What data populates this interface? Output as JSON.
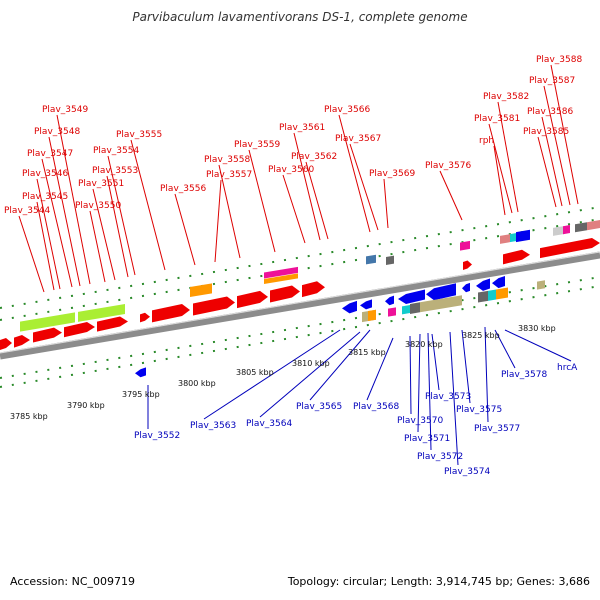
{
  "title": "Parvibaculum lavamentivorans DS-1, complete genome",
  "footer": {
    "accession": "Accession: NC_009719",
    "topology": "Topology: circular; Length: 3,914,745 bp; Genes: 3,686"
  },
  "colors": {
    "forward_label": "#dd0000",
    "reverse_label": "#0000bb",
    "backbone": "#8c8c8c",
    "tick": "#2a8a2a",
    "gene_red": "#ee0000",
    "gene_blue": "#0000ee",
    "gene_green": "#aaee33",
    "gene_orange": "#ff9900",
    "gene_magenta": "#ee1199",
    "gene_olive": "#bbb07a",
    "gene_gray": "#666666",
    "gene_cyan": "#11cccc",
    "gene_steel": "#4477aa",
    "gene_salmon": "#e08080",
    "gene_lightgray": "#cccccc"
  },
  "kbp_labels": [
    "3785 kbp",
    "3790 kbp",
    "3795 kbp",
    "3800 kbp",
    "3805 kbp",
    "3810 kbp",
    "3815 kbp",
    "3820 kbp",
    "3825 kbp",
    "3830 kbp"
  ],
  "forward_genes": [
    "Plav_3544",
    "Plav_3545",
    "Plav_3546",
    "Plav_3547",
    "Plav_3548",
    "Plav_3549",
    "Plav_3550",
    "Plav_3551",
    "Plav_3553",
    "Plav_3554",
    "Plav_3555",
    "Plav_3556",
    "Plav_3557",
    "Plav_3558",
    "Plav_3559",
    "Plav_3560",
    "Plav_3561",
    "Plav_3562",
    "Plav_3566",
    "Plav_3567",
    "Plav_3569",
    "Plav_3576",
    "rph",
    "Plav_3581",
    "Plav_3582",
    "Plav_3585",
    "Plav_3586",
    "Plav_3587",
    "Plav_3588"
  ],
  "reverse_genes": [
    "Plav_3552",
    "Plav_3563",
    "Plav_3564",
    "Plav_3565",
    "Plav_3568",
    "Plav_3570",
    "Plav_3571",
    "Plav_3572",
    "Plav_3573",
    "Plav_3574",
    "Plav_3575",
    "Plav_3577",
    "Plav_3578",
    "hrcA"
  ]
}
